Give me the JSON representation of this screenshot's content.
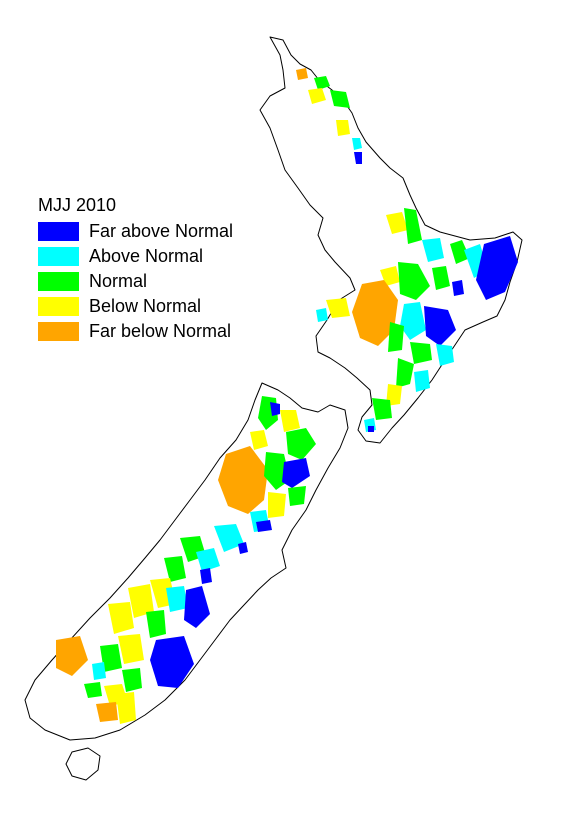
{
  "legend": {
    "title": "MJJ 2010",
    "items": [
      {
        "label": "Far above Normal",
        "color": "#0000ff"
      },
      {
        "label": "Above Normal",
        "color": "#00ffff"
      },
      {
        "label": "Normal",
        "color": "#00ff00"
      },
      {
        "label": "Below Normal",
        "color": "#ffff00"
      },
      {
        "label": "Far below Normal",
        "color": "#ffa500"
      }
    ]
  }
}
